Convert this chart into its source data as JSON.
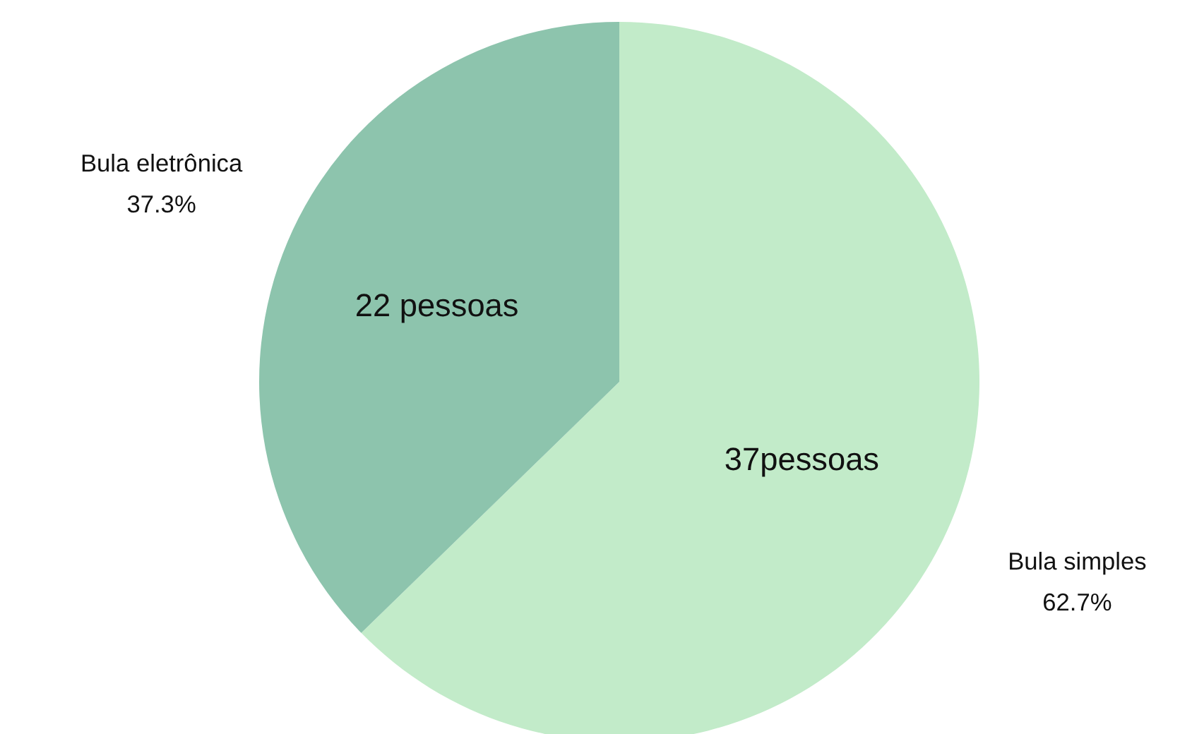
{
  "chart_data": {
    "type": "pie",
    "categories": [
      "Bula simples",
      "Bula eletrônica"
    ],
    "values": [
      37,
      22
    ],
    "colors": [
      "#c2ebc9",
      "#8dc4ad"
    ],
    "value_labels": [
      "37pessoas",
      "22 pessoas"
    ],
    "annotations": [
      "62.7%",
      "37.3%"
    ]
  }
}
